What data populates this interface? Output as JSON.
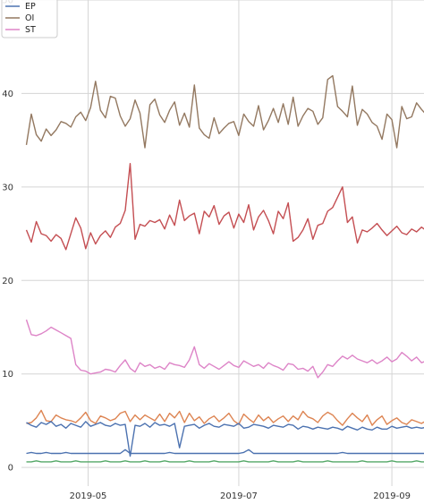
{
  "chart_data": {
    "type": "line",
    "title": "",
    "xlabel": "",
    "ylabel": "",
    "ylim": [
      -2,
      50
    ],
    "xlim": [
      "2019-04-04",
      "2019-09-14"
    ],
    "x_start": "2019-04-06",
    "x_end": "2019-09-14",
    "x_step_days": 2,
    "grid": true,
    "legend_position": "top-left",
    "y_ticks": [
      0,
      10,
      20,
      30,
      40,
      50
    ],
    "x_ticks": [
      {
        "date": "2019-05-01",
        "label": "2019-05"
      },
      {
        "date": "2019-07-01",
        "label": "2019-07"
      },
      {
        "date": "2019-09-01",
        "label": "2019-09"
      }
    ],
    "series": [
      {
        "name": "EP",
        "color": "#4c72b0",
        "in_legend": true,
        "values": [
          1.5,
          1.6,
          1.5,
          1.5,
          1.6,
          1.5,
          1.5,
          1.5,
          1.6,
          1.5,
          1.5,
          1.5,
          1.5,
          1.5,
          1.5,
          1.5,
          1.5,
          1.5,
          1.5,
          1.5,
          1.9,
          1.5,
          1.5,
          1.5,
          1.5,
          1.5,
          1.5,
          1.5,
          1.5,
          1.6,
          1.5,
          1.5,
          1.5,
          1.5,
          1.5,
          1.5,
          1.5,
          1.5,
          1.5,
          1.5,
          1.5,
          1.5,
          1.5,
          1.5,
          1.6,
          1.9,
          1.5,
          1.5,
          1.5,
          1.5,
          1.5,
          1.5,
          1.5,
          1.5,
          1.5,
          1.5,
          1.5,
          1.5,
          1.5,
          1.5,
          1.5,
          1.5,
          1.5,
          1.5,
          1.6,
          1.5,
          1.5,
          1.5,
          1.5,
          1.5,
          1.5,
          1.5,
          1.5,
          1.5,
          1.5,
          1.5,
          1.5,
          1.5,
          1.5,
          1.5,
          1.5,
          1.5,
          1.5
        ]
      },
      {
        "name": "OI",
        "color": "#937860",
        "in_legend": true,
        "values": [
          34.5,
          37.8,
          35.6,
          34.9,
          36.2,
          35.5,
          36.1,
          37.0,
          36.8,
          36.4,
          37.5,
          38.0,
          37.1,
          38.5,
          41.3,
          38.2,
          37.4,
          39.7,
          39.5,
          37.6,
          36.5,
          37.3,
          39.3,
          37.9,
          34.2,
          38.8,
          39.4,
          37.7,
          36.9,
          38.2,
          39.1,
          36.6,
          37.9,
          36.4,
          40.9,
          36.3,
          35.6,
          35.2,
          37.4,
          35.7,
          36.3,
          36.8,
          37.0,
          35.5,
          37.8,
          37.0,
          36.5,
          38.7,
          36.1,
          37.1,
          38.4,
          36.9,
          38.9,
          36.7,
          39.6,
          36.5,
          37.6,
          38.4,
          38.1,
          36.7,
          37.4,
          41.5,
          41.9,
          38.6,
          38.1,
          37.5,
          40.8,
          36.6,
          38.3,
          37.8,
          36.9,
          36.5,
          35.1,
          37.8,
          37.2,
          34.2,
          38.6,
          37.3,
          37.5,
          39.0,
          38.3,
          37.7,
          37.8
        ]
      },
      {
        "name": "ST",
        "color": "#dd84c7",
        "in_legend": true,
        "values": [
          15.8,
          14.2,
          14.1,
          14.3,
          14.6,
          15.0,
          14.7,
          14.4,
          14.1,
          13.8,
          11.0,
          10.4,
          10.3,
          10.0,
          10.1,
          10.2,
          10.5,
          10.4,
          10.2,
          10.9,
          11.5,
          10.6,
          10.2,
          11.2,
          10.8,
          11.0,
          10.6,
          10.8,
          10.5,
          11.2,
          11.0,
          10.9,
          10.7,
          11.5,
          12.9,
          11.0,
          10.6,
          11.1,
          10.8,
          10.5,
          10.9,
          11.3,
          10.9,
          10.7,
          11.4,
          11.1,
          10.8,
          11.0,
          10.6,
          11.2,
          10.9,
          10.7,
          10.4,
          11.1,
          11.0,
          10.5,
          10.6,
          10.3,
          10.8,
          9.6,
          10.2,
          11.0,
          10.8,
          11.4,
          11.9,
          11.6,
          12.0,
          11.6,
          11.4,
          11.2,
          11.5,
          11.1,
          11.4,
          11.8,
          11.3,
          11.6,
          12.3,
          11.9,
          11.4,
          11.8,
          11.2,
          11.4,
          11.5
        ]
      },
      {
        "name": "",
        "color": "#c44e52",
        "in_legend": false,
        "values": [
          25.4,
          24.1,
          26.3,
          25.0,
          24.8,
          24.2,
          24.9,
          24.5,
          23.3,
          25.0,
          26.7,
          25.6,
          23.4,
          25.1,
          23.9,
          24.8,
          25.3,
          24.6,
          25.7,
          26.1,
          27.5,
          32.5,
          24.4,
          26.0,
          25.8,
          26.4,
          26.2,
          26.5,
          25.5,
          27.0,
          25.9,
          28.6,
          26.4,
          26.9,
          27.2,
          25.0,
          27.4,
          26.8,
          28.0,
          26.0,
          26.9,
          27.3,
          25.6,
          27.1,
          26.2,
          28.1,
          25.4,
          26.8,
          27.5,
          26.4,
          25.0,
          27.4,
          26.6,
          28.3,
          24.2,
          24.6,
          25.4,
          26.6,
          24.4,
          25.9,
          26.1,
          27.4,
          27.8,
          28.9,
          30.0,
          26.2,
          26.8,
          24.0,
          25.4,
          25.2,
          25.6,
          26.1,
          25.4,
          24.8,
          25.3,
          25.8,
          25.1,
          24.9,
          25.5,
          25.2,
          25.7,
          25.3,
          25.4
        ]
      },
      {
        "name": "",
        "color": "#dd8452",
        "in_legend": false,
        "values": [
          4.7,
          4.8,
          5.3,
          6.1,
          5.0,
          4.9,
          5.6,
          5.3,
          5.1,
          5.0,
          4.8,
          5.3,
          5.9,
          5.0,
          4.7,
          5.5,
          5.3,
          5.0,
          5.2,
          5.8,
          6.0,
          4.9,
          5.6,
          5.1,
          5.6,
          5.3,
          5.0,
          5.7,
          4.9,
          5.8,
          5.3,
          6.0,
          4.8,
          5.8,
          5.0,
          5.4,
          4.7,
          5.2,
          5.5,
          4.9,
          5.3,
          5.8,
          5.0,
          4.6,
          5.7,
          5.2,
          4.8,
          5.6,
          5.0,
          5.4,
          4.8,
          5.2,
          5.5,
          4.9,
          5.5,
          5.1,
          6.0,
          5.4,
          5.2,
          4.8,
          5.5,
          5.9,
          5.6,
          5.0,
          4.5,
          5.2,
          5.8,
          5.3,
          4.9,
          5.6,
          4.5,
          5.1,
          5.5,
          4.6,
          5.0,
          5.3,
          4.8,
          4.6,
          5.1,
          4.9,
          4.7,
          5.0,
          4.9
        ]
      },
      {
        "name": "",
        "color": "#55a868",
        "in_legend": false,
        "values": [
          0.6,
          0.6,
          0.7,
          0.6,
          0.6,
          0.6,
          0.7,
          0.6,
          0.6,
          0.6,
          0.7,
          0.6,
          0.6,
          0.6,
          0.6,
          0.6,
          0.7,
          0.6,
          0.6,
          0.6,
          0.7,
          0.6,
          0.6,
          0.6,
          0.7,
          0.6,
          0.6,
          0.6,
          0.7,
          0.6,
          0.6,
          0.6,
          0.6,
          0.7,
          0.6,
          0.6,
          0.6,
          0.6,
          0.7,
          0.6,
          0.6,
          0.6,
          0.6,
          0.6,
          0.7,
          0.6,
          0.6,
          0.6,
          0.6,
          0.6,
          0.7,
          0.6,
          0.6,
          0.6,
          0.6,
          0.7,
          0.6,
          0.6,
          0.6,
          0.6,
          0.6,
          0.7,
          0.6,
          0.6,
          0.6,
          0.6,
          0.6,
          0.6,
          0.7,
          0.6,
          0.6,
          0.6,
          0.6,
          0.6,
          0.7,
          0.6,
          0.6,
          0.6,
          0.6,
          0.7,
          0.6,
          0.6,
          0.7
        ]
      },
      {
        "name": "",
        "color": "#4c72b0",
        "in_legend": false,
        "values": [
          4.8,
          4.5,
          4.3,
          4.8,
          4.6,
          4.9,
          4.4,
          4.6,
          4.2,
          4.7,
          4.5,
          4.3,
          4.9,
          4.4,
          4.6,
          4.8,
          4.5,
          4.4,
          4.7,
          4.5,
          4.6,
          1.2,
          4.5,
          4.4,
          4.7,
          4.3,
          4.8,
          4.5,
          4.6,
          4.4,
          4.7,
          2.1,
          4.4,
          4.5,
          4.6,
          4.2,
          4.5,
          4.7,
          4.4,
          4.3,
          4.6,
          4.5,
          4.4,
          4.7,
          4.2,
          4.3,
          4.6,
          4.5,
          4.4,
          4.2,
          4.5,
          4.4,
          4.3,
          4.6,
          4.5,
          4.1,
          4.4,
          4.3,
          4.1,
          4.3,
          4.2,
          4.1,
          4.3,
          4.2,
          4.0,
          4.4,
          4.2,
          4.0,
          4.3,
          4.1,
          4.0,
          4.3,
          4.1,
          4.1,
          4.4,
          4.2,
          4.3,
          4.4,
          4.2,
          4.3,
          4.2,
          4.3,
          4.2
        ]
      }
    ]
  }
}
